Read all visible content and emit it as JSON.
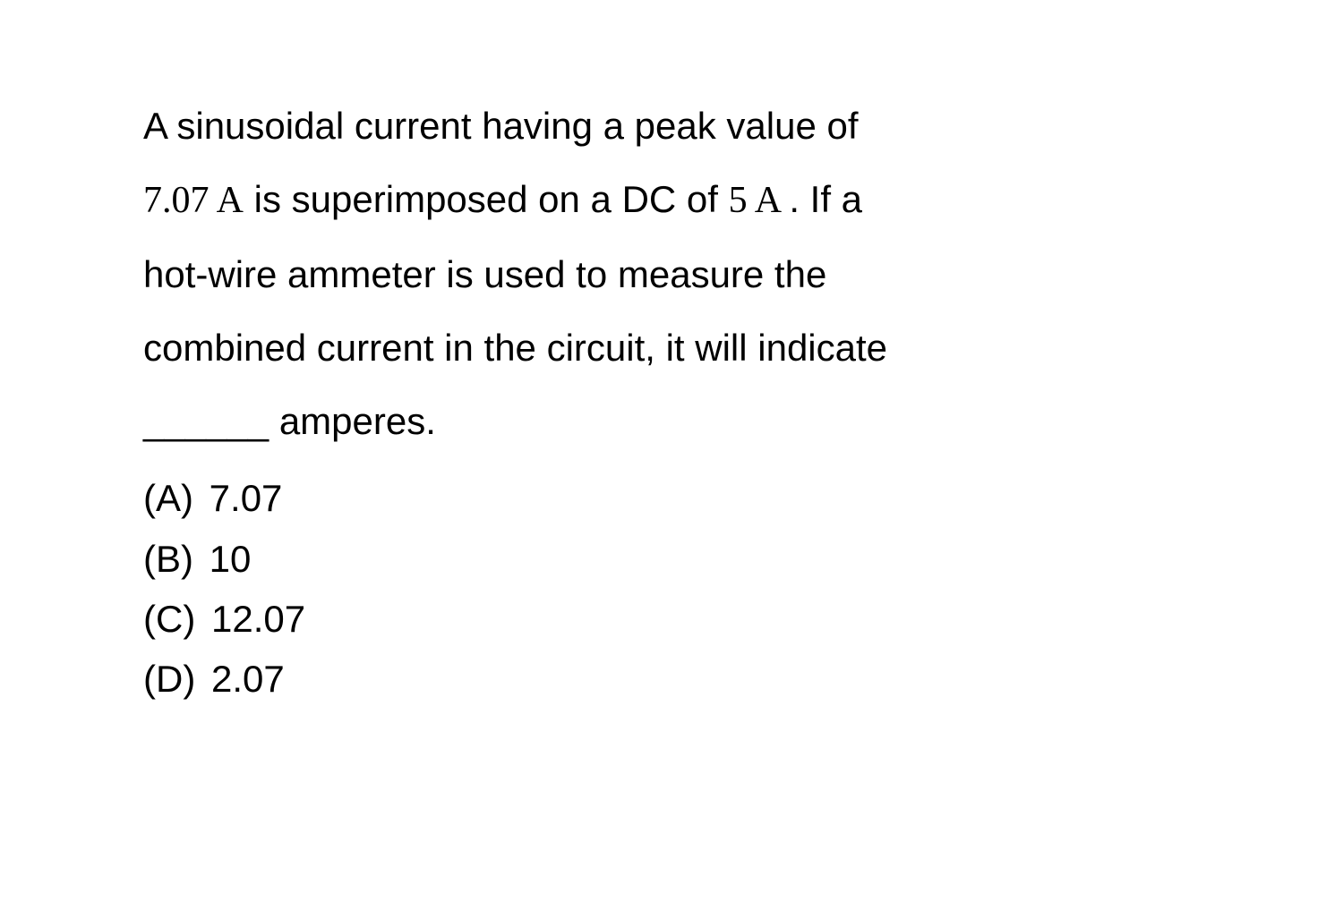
{
  "question": {
    "text_parts": {
      "p1": "A sinusoidal current having a peak value of",
      "peak_value": "7.07 A",
      "p2": " is superimposed on a DC of ",
      "dc_value": " 5 A ",
      "p3": ". If a",
      "p4": "hot-wire ammeter is used to measure the",
      "p5": "combined current in the circuit, it will indicate",
      "blank": "______",
      "p6": " amperes."
    }
  },
  "options": [
    {
      "label": "(A)",
      "value": "7.07"
    },
    {
      "label": "(B)",
      "value": "10"
    },
    {
      "label": "(C)",
      "value": "12.07"
    },
    {
      "label": "(D)",
      "value": "2.07"
    }
  ],
  "styling": {
    "background_color": "#ffffff",
    "text_color": "#000000",
    "font_size_pt": 42,
    "line_height": 1.95,
    "body_font": "Arial, Helvetica, sans-serif",
    "math_font": "Times New Roman, Times, serif"
  }
}
